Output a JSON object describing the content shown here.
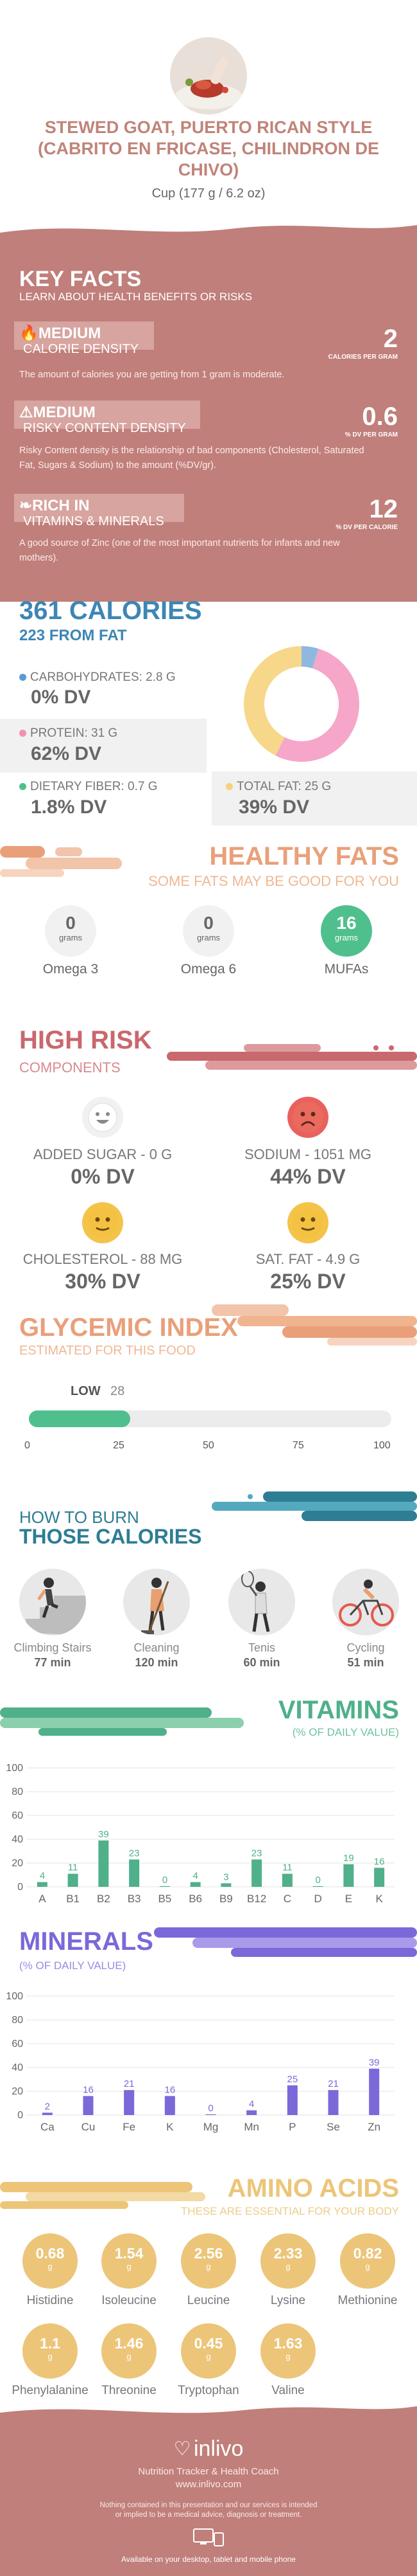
{
  "header": {
    "title": "STEWED GOAT, PUERTO RICAN STYLE (CABRITO EN FRICASE, CHILINDRON DE CHIVO)",
    "serving": "Cup (177 g / 6.2 oz)"
  },
  "key_facts": {
    "title": "KEY FACTS",
    "subtitle": "LEARN ABOUT HEALTH BENEFITS OR RISKS",
    "items": [
      {
        "level": "MEDIUM",
        "name": "CALORIE DENSITY",
        "value": "2",
        "unit": "CALORIES PER GRAM",
        "desc": "The amount of calories you are getting from 1 gram is moderate."
      },
      {
        "level": "MEDIUM",
        "name": "RISKY CONTENT DENSITY",
        "value": "0.6",
        "unit": "% DV PER GRAM",
        "desc": "Risky Content density is the relationship of bad components (Cholesterol, Saturated Fat, Sugars & Sodium) to the amount (%DV/gr)."
      },
      {
        "level": "RICH  IN",
        "name": "VITAMINS & MINERALS",
        "value": "12",
        "unit": "% DV PER CALORIE",
        "desc": "A good source of Zinc (one of the most important nutrients for infants and new mothers)."
      }
    ]
  },
  "calories": {
    "title": "361 CALORIES",
    "subtitle": "223 FROM FAT",
    "carbs": {
      "label": "CARBOHYDRATES: 2.8 g",
      "dv": "0% DV",
      "color": "#5b9bd5"
    },
    "protein": {
      "label": "PROTEIN: 31 g",
      "dv": "62% DV",
      "color": "#f48fb1"
    },
    "fiber": {
      "label": "DIETARY FIBER: 0.7 g",
      "dv": "1.8% DV",
      "color": "#4fc08d"
    },
    "fat": {
      "label": "TOTAL FAT: 25 g",
      "dv": "39% DV",
      "color": "#f6d27a"
    },
    "donut": [
      {
        "name": "carbs",
        "value": 2.8,
        "color": "#8fb8e0"
      },
      {
        "name": "protein",
        "value": 31,
        "color": "#f6a6c8"
      },
      {
        "name": "fat",
        "value": 25,
        "color": "#f7d789"
      }
    ]
  },
  "healthy_fats": {
    "title": "HEALTHY FATS",
    "subtitle": "SOME FATS MAY BE GOOD FOR YOU",
    "unit": "grams",
    "items": [
      {
        "name": "Omega 3",
        "value": "0"
      },
      {
        "name": "Omega 6",
        "value": "0"
      },
      {
        "name": "MUFAs",
        "value": "16"
      }
    ]
  },
  "high_risk": {
    "title": "HIGH RISK",
    "subtitle": "COMPONENTS",
    "items": [
      {
        "label": "ADDED SUGAR - 0 g",
        "dv": "0% DV",
        "mood": "happy"
      },
      {
        "label": "SODIUM - 1051 mg",
        "dv": "44% DV",
        "mood": "sad"
      },
      {
        "label": "CHOLESTEROL - 88 mg",
        "dv": "30% DV",
        "mood": "neutral"
      },
      {
        "label": "SAT. FAT - 4.9 g",
        "dv": "25% DV",
        "mood": "neutral"
      }
    ]
  },
  "glycemic": {
    "title": "GLYCEMIC INDEX",
    "subtitle": "ESTIMATED FOR THIS FOOD",
    "level": "LOW",
    "value": "28",
    "value_num": 28,
    "ticks": [
      "0",
      "25",
      "50",
      "75",
      "100"
    ]
  },
  "burn": {
    "title_line1": "HOW TO BURN",
    "title_line2": "THOSE CALORIES",
    "items": [
      {
        "name": "Climbing Stairs",
        "minutes": "77 min"
      },
      {
        "name": "Cleaning",
        "minutes": "120 min"
      },
      {
        "name": "Tenis",
        "minutes": "60 min"
      },
      {
        "name": "Cycling",
        "minutes": "51 min"
      }
    ]
  },
  "vitamins": {
    "title": "VITAMINS",
    "subtitle": "(% OF DAILY VALUE)"
  },
  "minerals": {
    "title": "MINERALS",
    "subtitle": "(% OF DAILY VALUE)"
  },
  "chart_data": [
    {
      "type": "bar",
      "title": "VITAMINS",
      "subtitle": "(% OF DAILY VALUE)",
      "categories": [
        "A",
        "B1",
        "B2",
        "B3",
        "B5",
        "B6",
        "B9",
        "B12",
        "C",
        "D",
        "E",
        "K"
      ],
      "values": [
        4,
        11,
        39,
        23,
        0,
        4,
        3,
        23,
        11,
        0,
        19,
        16
      ],
      "ylim": [
        0,
        100
      ],
      "yticks": [
        "0",
        "20",
        "40",
        "60",
        "80",
        "100"
      ],
      "color": "#4fb08a"
    },
    {
      "type": "bar",
      "title": "MINERALS",
      "subtitle": "(% OF DAILY VALUE)",
      "categories": [
        "Ca",
        "Cu",
        "Fe",
        "K",
        "Mg",
        "Mn",
        "P",
        "Se",
        "Zn"
      ],
      "values": [
        2,
        16,
        21,
        16,
        0,
        4,
        25,
        21,
        39
      ],
      "ylim": [
        0,
        100
      ],
      "yticks": [
        "0",
        "20",
        "40",
        "60",
        "80",
        "100"
      ],
      "color": "#7b68d9"
    }
  ],
  "amino": {
    "title": "AMINO ACIDS",
    "subtitle": "THESE ARE ESSENTIAL FOR YOUR BODY",
    "unit": "g",
    "items": [
      {
        "name": "Histidine",
        "value": "0.68"
      },
      {
        "name": "Isoleucine",
        "value": "1.54"
      },
      {
        "name": "Leucine",
        "value": "2.56"
      },
      {
        "name": "Lysine",
        "value": "2.33"
      },
      {
        "name": "Methionine",
        "value": "0.82"
      },
      {
        "name": "Phenylalanine",
        "value": "1.1"
      },
      {
        "name": "Threonine",
        "value": "1.46"
      },
      {
        "name": "Tryptophan",
        "value": "0.45"
      },
      {
        "name": "Valine",
        "value": "1.63"
      }
    ]
  },
  "footer": {
    "brand": "inlivo",
    "tagline": "Nutrition Tracker & Health Coach",
    "url": "www.inlivo.com",
    "disclaimer": "Nothing contained in this presentation and our services is intended or implied to be a medical advice, diagnosis or treatment.",
    "available": "Available on your desktop, tablet and mobile phone"
  },
  "colors": {
    "rose": "#c07f7a",
    "blue": "#3d86b5",
    "orange": "#e9a07a",
    "coral": "#c9686d",
    "green": "#4fb08a",
    "purple": "#7b68d9",
    "gold": "#ecc579"
  }
}
